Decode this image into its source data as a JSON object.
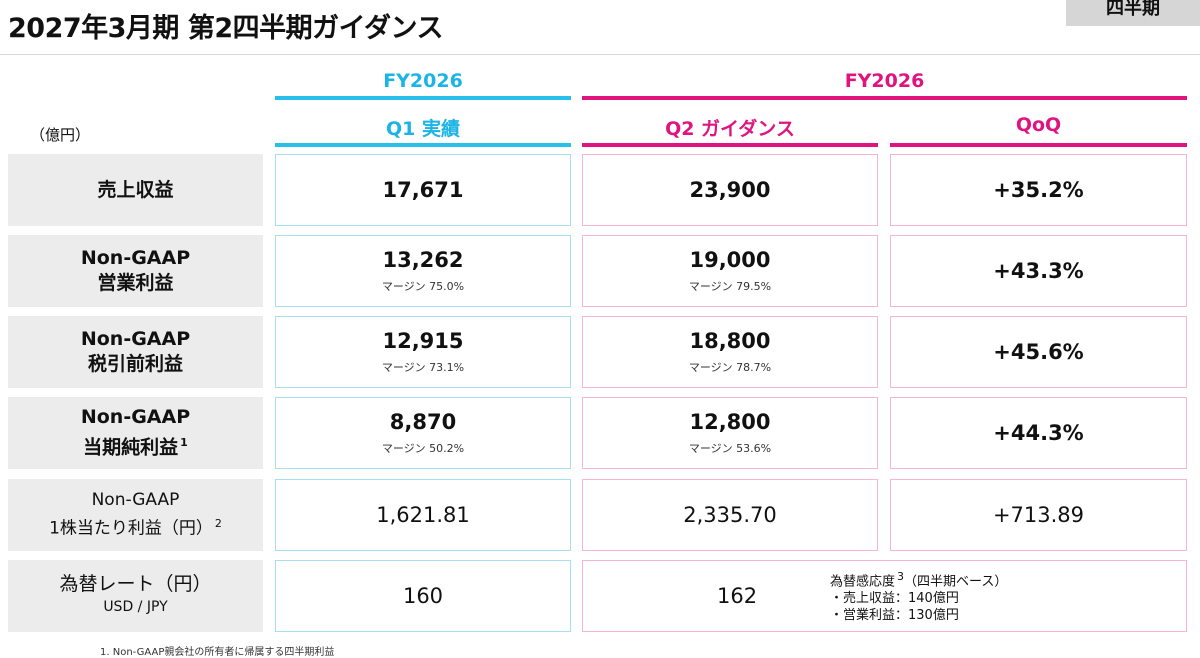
{
  "title": "2027年3月期 第2四半期ガイダンス",
  "tag": "四半期",
  "unit": "（億円）",
  "headers": {
    "fy_left": "FY2026",
    "fy_right": "FY2026",
    "col1": "Q1 実績",
    "col2": "Q2 ガイダンス",
    "col3": "QoQ"
  },
  "rows": [
    {
      "label_line1": "売上収益",
      "label_line2": "",
      "sup": "",
      "q1": "17,671",
      "q1_margin": "",
      "q2": "23,900",
      "q2_margin": "",
      "qoq": "+35.2%"
    },
    {
      "label_line1": "Non-GAAP",
      "label_line2": "営業利益",
      "sup": "",
      "q1": "13,262",
      "q1_margin": "マージン 75.0%",
      "q2": "19,000",
      "q2_margin": "マージン 79.5%",
      "qoq": "+43.3%"
    },
    {
      "label_line1": "Non-GAAP",
      "label_line2": "税引前利益",
      "sup": "",
      "q1": "12,915",
      "q1_margin": "マージン 73.1%",
      "q2": "18,800",
      "q2_margin": "マージン 78.7%",
      "qoq": "+45.6%"
    },
    {
      "label_line1": "Non-GAAP",
      "label_line2": "当期純利益",
      "sup": "1",
      "q1": "8,870",
      "q1_margin": "マージン 50.2%",
      "q2": "12,800",
      "q2_margin": "マージン 53.6%",
      "qoq": "+44.3%"
    },
    {
      "label_line1": "Non-GAAP",
      "label_line2": "1株当たり利益（円）",
      "sup": "2",
      "q1": "1,621.81",
      "q1_margin": "",
      "q2": "2,335.70",
      "q2_margin": "",
      "qoq": "+713.89"
    },
    {
      "label_line1": "為替レート（円）",
      "label_line2": "USD / JPY",
      "sup": "",
      "q1": "160",
      "q1_margin": "",
      "q2": "162",
      "q2_margin": "",
      "qoq": ""
    }
  ],
  "fx_note": {
    "title": "為替感応度",
    "sup": "3",
    "title_suffix": "（四半期ベース）",
    "line1": "・売上収益：140億円",
    "line2": "・営業利益：130億円"
  },
  "footnote": "1. Non-GAAP親会社の所有者に帰属する四半期利益"
}
